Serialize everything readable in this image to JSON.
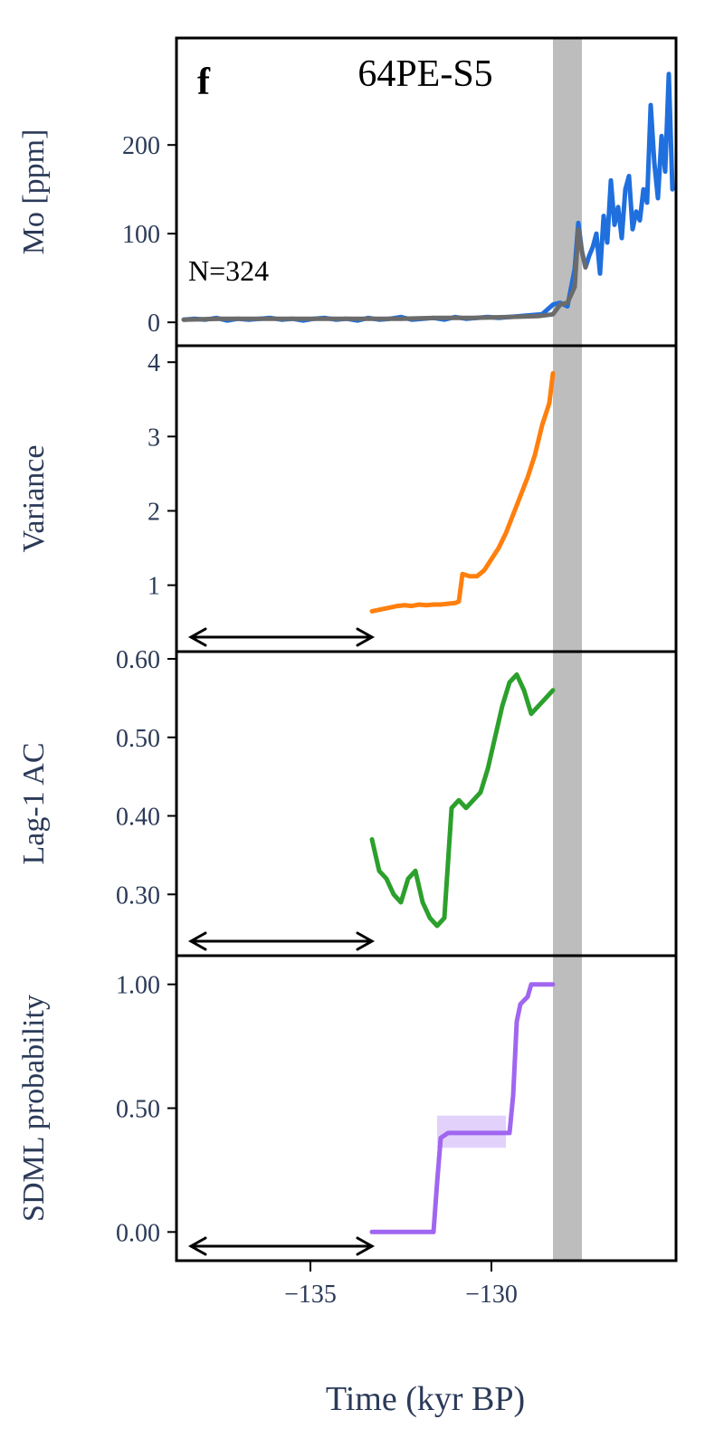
{
  "figure": {
    "panel_letter": "f",
    "site": "64PE-S5",
    "n_label": "N=324",
    "xlabel": "Time (kyr BP)",
    "x_ticks": [
      -135,
      -130
    ],
    "shade": [
      -128.3,
      -127.5
    ],
    "window_arrow": [
      -138.3,
      -133.3
    ]
  },
  "colors": {
    "mo": "#1f6fde",
    "mo_trend": "#6b6b6b",
    "variance": "#ff7f0e",
    "ac": "#2ca02c",
    "sdml": "#a066f0",
    "sdml_band": "#e2d2fb",
    "shade": "#bdbdbd",
    "axis_text": "#2b3a58"
  },
  "chart_data": [
    {
      "type": "line",
      "panel": "mo",
      "ylabel": "Mo [ppm]",
      "xlim": [
        -138.7,
        -124.9
      ],
      "ylim": [
        -8,
        290
      ],
      "yticks": [
        0,
        100,
        200
      ],
      "series": [
        {
          "x": [
            -138.5,
            -138.2,
            -137.9,
            -137.6,
            -137.3,
            -137.0,
            -136.7,
            -136.4,
            -136.1,
            -135.8,
            -135.5,
            -135.2,
            -134.9,
            -134.6,
            -134.3,
            -134.0,
            -133.7,
            -133.4,
            -133.1,
            -132.8,
            -132.5,
            -132.2,
            -131.9,
            -131.6,
            -131.3,
            -131.0,
            -130.7,
            -130.4,
            -130.1,
            -129.8,
            -129.5,
            -129.2,
            -128.9,
            -128.6,
            -128.3,
            -128.1,
            -127.9,
            -127.7,
            -127.6,
            -127.5,
            -127.4,
            -127.3,
            -127.2,
            -127.1,
            -127.0,
            -126.9,
            -126.8,
            -126.7,
            -126.6,
            -126.5,
            -126.4,
            -126.3,
            -126.2,
            -126.1,
            -126.0,
            -125.9,
            -125.8,
            -125.7,
            -125.6,
            -125.5,
            -125.4,
            -125.3,
            -125.2,
            -125.1,
            -125.0
          ],
          "y": [
            3,
            4,
            3,
            5,
            2,
            4,
            3,
            4,
            5,
            3,
            4,
            2,
            4,
            5,
            3,
            4,
            2,
            5,
            3,
            4,
            6,
            3,
            4,
            5,
            3,
            6,
            4,
            5,
            6,
            5,
            6,
            7,
            8,
            9,
            20,
            22,
            18,
            60,
            112,
            80,
            62,
            75,
            85,
            100,
            55,
            120,
            90,
            160,
            110,
            130,
            95,
            150,
            165,
            105,
            125,
            115,
            150,
            135,
            245,
            180,
            140,
            210,
            170,
            280,
            150
          ]
        },
        {
          "x": [
            -138.5,
            -137.5,
            -136.5,
            -135.5,
            -134.5,
            -133.5,
            -132.5,
            -131.5,
            -130.5,
            -129.5,
            -128.7,
            -128.3,
            -128.1,
            -127.9,
            -127.7,
            -127.6,
            -127.5,
            -127.4
          ],
          "y": [
            3,
            4,
            4,
            4,
            4,
            4,
            4,
            5,
            5,
            6,
            7,
            9,
            20,
            22,
            40,
            105,
            80,
            62
          ]
        }
      ]
    },
    {
      "type": "line",
      "panel": "variance",
      "ylabel": "Variance",
      "xlim": [
        -138.7,
        -124.9
      ],
      "ylim": [
        0.35,
        4.1
      ],
      "yticks": [
        1,
        2,
        3,
        4
      ],
      "series": [
        {
          "x": [
            -133.3,
            -133.0,
            -132.8,
            -132.6,
            -132.4,
            -132.2,
            -132.0,
            -131.8,
            -131.6,
            -131.4,
            -131.2,
            -131.0,
            -130.9,
            -130.8,
            -130.6,
            -130.4,
            -130.2,
            -130.0,
            -129.8,
            -129.6,
            -129.4,
            -129.2,
            -129.0,
            -128.8,
            -128.6,
            -128.4,
            -128.3
          ],
          "y": [
            0.65,
            0.68,
            0.7,
            0.72,
            0.73,
            0.72,
            0.74,
            0.73,
            0.74,
            0.74,
            0.75,
            0.76,
            0.78,
            1.15,
            1.12,
            1.12,
            1.2,
            1.35,
            1.5,
            1.7,
            1.95,
            2.2,
            2.45,
            2.75,
            3.15,
            3.45,
            3.85
          ]
        }
      ]
    },
    {
      "type": "line",
      "panel": "lag1_ac",
      "ylabel": "Lag-1 AC",
      "xlim": [
        -138.7,
        -124.9
      ],
      "ylim": [
        0.245,
        0.6
      ],
      "yticks": [
        0.3,
        0.4,
        0.5,
        0.6
      ],
      "series": [
        {
          "x": [
            -133.3,
            -133.1,
            -132.9,
            -132.7,
            -132.5,
            -132.3,
            -132.1,
            -131.9,
            -131.7,
            -131.5,
            -131.3,
            -131.1,
            -130.9,
            -130.7,
            -130.5,
            -130.3,
            -130.1,
            -129.9,
            -129.7,
            -129.5,
            -129.3,
            -129.1,
            -128.9,
            -128.7,
            -128.5,
            -128.3
          ],
          "y": [
            0.37,
            0.33,
            0.32,
            0.3,
            0.29,
            0.32,
            0.33,
            0.29,
            0.27,
            0.26,
            0.27,
            0.41,
            0.42,
            0.41,
            0.42,
            0.43,
            0.46,
            0.5,
            0.54,
            0.57,
            0.58,
            0.56,
            0.53,
            0.54,
            0.55,
            0.56
          ]
        }
      ]
    },
    {
      "type": "line",
      "panel": "sdml",
      "ylabel": "SDML probability",
      "xlim": [
        -138.7,
        -124.9
      ],
      "ylim": [
        -0.05,
        1.05
      ],
      "yticks": [
        0.0,
        0.5,
        1.0
      ],
      "series": [
        {
          "x": [
            -133.3,
            -131.6,
            -131.5,
            -131.4,
            -131.2,
            -130.0,
            -129.5,
            -129.4,
            -129.3,
            -129.2,
            -129.0,
            -128.9,
            -128.3
          ],
          "y": [
            0.0,
            0.0,
            0.2,
            0.38,
            0.4,
            0.4,
            0.4,
            0.55,
            0.85,
            0.92,
            0.95,
            1.0,
            1.0
          ]
        }
      ],
      "band": {
        "x": [
          -131.5,
          -129.6
        ],
        "lower": 0.34,
        "upper": 0.47
      }
    }
  ]
}
